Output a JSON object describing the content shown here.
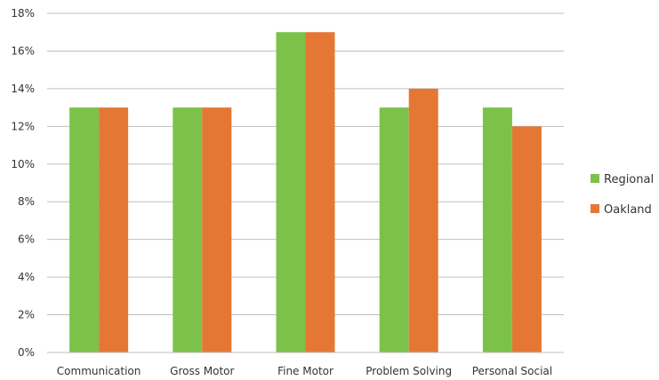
{
  "chart_data": {
    "type": "bar",
    "categories": [
      "Communication",
      "Gross Motor",
      "Fine Motor",
      "Problem Solving",
      "Personal Social"
    ],
    "series": [
      {
        "name": "Regional",
        "values": [
          13,
          13,
          17,
          13,
          13
        ],
        "color": "#7cc24a"
      },
      {
        "name": "Oakland",
        "values": [
          13,
          13,
          17,
          14,
          12
        ],
        "color": "#e57735"
      }
    ],
    "ylim": [
      0,
      18
    ],
    "yticks": [
      "0%",
      "2%",
      "4%",
      "6%",
      "8%",
      "10%",
      "12%",
      "14%",
      "16%",
      "18%"
    ],
    "grid": true,
    "legend_position": "right"
  }
}
